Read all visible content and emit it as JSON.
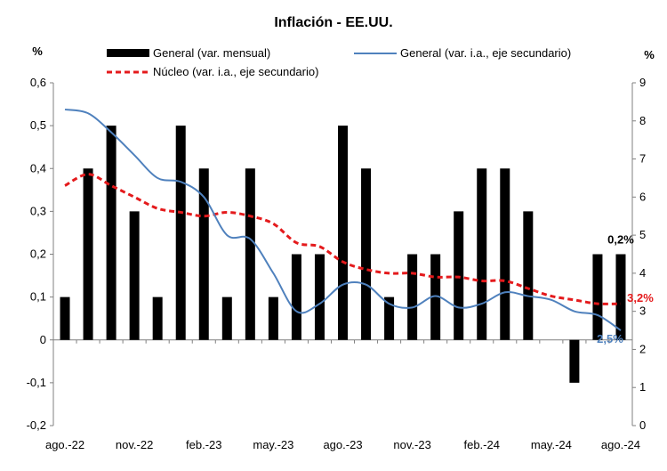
{
  "chart_data": {
    "type": "bar+line",
    "title": "Inflación - EE.UU.",
    "y_left_unit": "%",
    "y_right_unit": "%",
    "y_left_range": [
      -0.2,
      0.6
    ],
    "y_left_ticks": [
      "-0,2",
      "-0,1",
      "0",
      "0,1",
      "0,2",
      "0,3",
      "0,4",
      "0,5",
      "0,6"
    ],
    "y_right_range": [
      0,
      9
    ],
    "y_right_ticks": [
      "0",
      "1",
      "2",
      "3",
      "4",
      "5",
      "6",
      "7",
      "8",
      "9"
    ],
    "x_tick_labels": [
      "ago.-22",
      "nov.-22",
      "feb.-23",
      "may.-23",
      "ago.-23",
      "nov.-23",
      "feb.-24",
      "may.-24",
      "ago.-24"
    ],
    "months": [
      "ago.-22",
      "sep.-22",
      "oct.-22",
      "nov.-22",
      "dic.-22",
      "ene.-23",
      "feb.-23",
      "mar.-23",
      "abr.-23",
      "may.-23",
      "jun.-23",
      "jul.-23",
      "ago.-23",
      "sep.-23",
      "oct.-23",
      "nov.-23",
      "dic.-23",
      "ene.-24",
      "feb.-24",
      "mar.-24",
      "abr.-24",
      "may.-24",
      "jun.-24",
      "jul.-24",
      "ago.-24"
    ],
    "series": [
      {
        "name": "General (var. mensual)",
        "kind": "bar",
        "axis": "left",
        "color": "#000000",
        "values": [
          0.1,
          0.4,
          0.5,
          0.3,
          0.1,
          0.5,
          0.4,
          0.1,
          0.4,
          0.1,
          0.2,
          0.2,
          0.5,
          0.4,
          0.1,
          0.2,
          0.2,
          0.3,
          0.4,
          0.4,
          0.3,
          0.0,
          -0.1,
          0.2,
          0.2
        ]
      },
      {
        "name": "General (var. i.a., eje secundario)",
        "kind": "line",
        "style": "solid",
        "axis": "right",
        "color": "#4f81bd",
        "values": [
          8.3,
          8.2,
          7.7,
          7.1,
          6.5,
          6.4,
          6.0,
          5.0,
          4.9,
          4.0,
          3.0,
          3.2,
          3.7,
          3.7,
          3.2,
          3.1,
          3.4,
          3.1,
          3.2,
          3.5,
          3.4,
          3.3,
          3.0,
          2.9,
          2.5
        ]
      },
      {
        "name": "Núcleo (var. i.a., eje secundario)",
        "kind": "line",
        "style": "dashed",
        "axis": "right",
        "color": "#e41a1c",
        "values": [
          6.3,
          6.6,
          6.3,
          6.0,
          5.7,
          5.6,
          5.5,
          5.6,
          5.5,
          5.3,
          4.8,
          4.7,
          4.3,
          4.1,
          4.0,
          4.0,
          3.9,
          3.9,
          3.8,
          3.8,
          3.6,
          3.4,
          3.3,
          3.2,
          3.2
        ]
      }
    ],
    "annotations": [
      {
        "text": "0,2%",
        "series": 0,
        "index": 24,
        "color": "#000000"
      },
      {
        "text": "3,2%",
        "series": 2,
        "index": 24,
        "color": "#e41a1c"
      },
      {
        "text": "2,5%",
        "series": 1,
        "index": 24,
        "color": "#4f81bd"
      }
    ],
    "grid": false,
    "legend_placement": "top"
  }
}
